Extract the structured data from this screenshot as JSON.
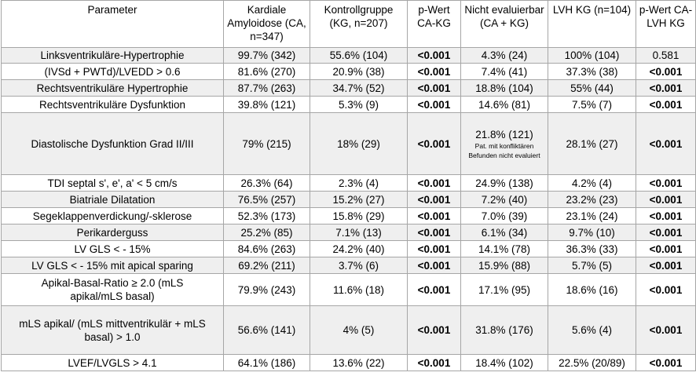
{
  "headers": [
    "Parameter",
    "Kardiale Amyloidose (CA, n=347)",
    "Kontrollgruppe (KG, n=207)",
    "p-Wert CA-KG",
    "Nicht evaluierbar (CA + KG)",
    "LVH KG (n=104)",
    "p-Wert CA-LVH KG"
  ],
  "rows": [
    {
      "param": "Linksventrikuläre-Hypertrophie",
      "ca": "99.7% (342)",
      "kg": "55.6% (104)",
      "p1": "<0.001",
      "ne": "4.3% (24)",
      "ne_note": "",
      "lvh": "100% (104)",
      "p2": "0.581",
      "p2_bold": false
    },
    {
      "param": "(IVSd + PWTd)/LVEDD > 0.6",
      "ca": "81.6% (270)",
      "kg": "20.9% (38)",
      "p1": "<0.001",
      "ne": "7.4% (41)",
      "ne_note": "",
      "lvh": "37.3% (38)",
      "p2": "<0.001",
      "p2_bold": true
    },
    {
      "param": "Rechtsventrikuläre Hypertrophie",
      "ca": "87.7% (263)",
      "kg": "34.7% (52)",
      "p1": "<0.001",
      "ne": "18.8% (104)",
      "ne_note": "",
      "lvh": "55% (44)",
      "p2": "<0.001",
      "p2_bold": true
    },
    {
      "param": "Rechtsventrikuläre Dysfunktion",
      "ca": "39.8% (121)",
      "kg": "5.3% (9)",
      "p1": "<0.001",
      "ne": "14.6% (81)",
      "ne_note": "",
      "lvh": "7.5% (7)",
      "p2": "<0.001",
      "p2_bold": true
    },
    {
      "param": "Diastolische Dysfunktion Grad II/III",
      "ca": "79% (215)",
      "kg": "18% (29)",
      "p1": "<0.001",
      "ne": "21.8% (121)",
      "ne_note": "Pat. mit konfliktären Befunden nicht evaluiert",
      "lvh": "28.1% (27)",
      "p2": "<0.001",
      "p2_bold": true
    },
    {
      "param": "TDI septal s', e', a' < 5 cm/s",
      "ca": "26.3% (64)",
      "kg": "2.3% (4)",
      "p1": "<0.001",
      "ne": "24.9% (138)",
      "ne_note": "",
      "lvh": "4.2% (4)",
      "p2": "<0.001",
      "p2_bold": true
    },
    {
      "param": "Biatriale Dilatation",
      "ca": "76.5% (257)",
      "kg": "15.2% (27)",
      "p1": "<0.001",
      "ne": "7.2% (40)",
      "ne_note": "",
      "lvh": "23.2% (23)",
      "p2": "<0.001",
      "p2_bold": true
    },
    {
      "param": "Segeklappenverdickung/-sklerose",
      "ca": "52.3% (173)",
      "kg": "15.8% (29)",
      "p1": "<0.001",
      "ne": "7.0% (39)",
      "ne_note": "",
      "lvh": "23.1% (24)",
      "p2": "<0.001",
      "p2_bold": true
    },
    {
      "param": "Perikarderguss",
      "ca": "25.2% (85)",
      "kg": "7.1% (13)",
      "p1": "<0.001",
      "ne": "6.1% (34)",
      "ne_note": "",
      "lvh": "9.7% (10)",
      "p2": "<0.001",
      "p2_bold": true
    },
    {
      "param": "LV GLS < - 15%",
      "ca": "84.6% (263)",
      "kg": "24.2% (40)",
      "p1": "<0.001",
      "ne": "14.1% (78)",
      "ne_note": "",
      "lvh": "36.3% (33)",
      "p2": "<0.001",
      "p2_bold": true
    },
    {
      "param": "LV GLS < - 15% mit apical sparing",
      "ca": "69.2% (211)",
      "kg": "3.7% (6)",
      "p1": "<0.001",
      "ne": "15.9% (88)",
      "ne_note": "",
      "lvh": "5.7% (5)",
      "p2": "<0.001",
      "p2_bold": true
    },
    {
      "param": "Apikal-Basal-Ratio ≥ 2.0 (mLS apikal/mLS basal)",
      "ca": "79.9% (243)",
      "kg": "11.6% (18)",
      "p1": "<0.001",
      "ne": "17.1% (95)",
      "ne_note": "",
      "lvh": "18.6% (16)",
      "p2": "<0.001",
      "p2_bold": true
    },
    {
      "param": "mLS apikal/ (mLS mittventrikulär + mLS basal) > 1.0",
      "ca": "56.6% (141)",
      "kg": "4% (5)",
      "p1": "<0.001",
      "ne": "31.8% (176)",
      "ne_note": "",
      "lvh": "5.6% (4)",
      "p2": "<0.001",
      "p2_bold": true
    },
    {
      "param": "LVEF/LVGLS > 4.1",
      "ca": "64.1% (186)",
      "kg": "13.6% (22)",
      "p1": "<0.001",
      "ne": "18.4% (102)",
      "ne_note": "",
      "lvh": "22.5% (20/89)",
      "p2": "<0.001",
      "p2_bold": true
    }
  ]
}
